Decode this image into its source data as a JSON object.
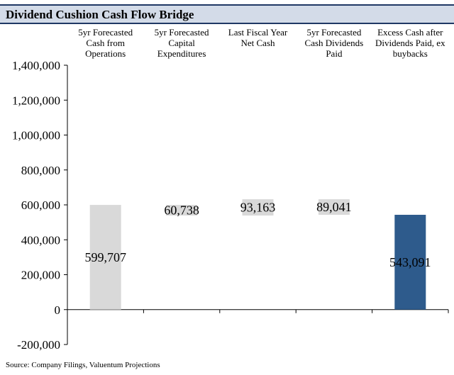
{
  "title": "Dividend Cushion Cash Flow Bridge",
  "source": "Source: Company Filings, Valuentum Projections",
  "colors": {
    "title_bar": "#d3dbe8",
    "title_border": "#1f3864",
    "gray_bar": "#d9d9d9",
    "final_bar": "#2e5b8c"
  },
  "chart_data": {
    "type": "bar",
    "subtype": "waterfall",
    "title": "Dividend Cushion Cash Flow Bridge",
    "categories": [
      [
        "5yr Forecasted",
        "Cash from",
        "Operations"
      ],
      [
        "5yr Forecasted",
        "Capital",
        "Expenditures"
      ],
      [
        "Last Fiscal Year",
        "Net Cash"
      ],
      [
        "5yr Forecasted",
        "Cash Dividends",
        "Paid"
      ],
      [
        "Excess Cash after",
        "Dividends Paid, ex",
        "buybacks"
      ]
    ],
    "values": [
      599707,
      -60738,
      93163,
      -89041,
      543091
    ],
    "data_labels": [
      "599,707",
      "60,738",
      "93,163",
      "89,041",
      "543,091"
    ],
    "ylim": [
      -200000,
      1400000
    ],
    "yticks": [
      -200000,
      0,
      200000,
      400000,
      600000,
      800000,
      1000000,
      1200000,
      1400000
    ],
    "ytick_labels": [
      "-200,000",
      "0",
      "200,000",
      "400,000",
      "600,000",
      "800,000",
      "1,000,000",
      "1,200,000",
      "1,400,000"
    ],
    "grid": false,
    "legend": "none",
    "xlabel": "",
    "ylabel": ""
  }
}
